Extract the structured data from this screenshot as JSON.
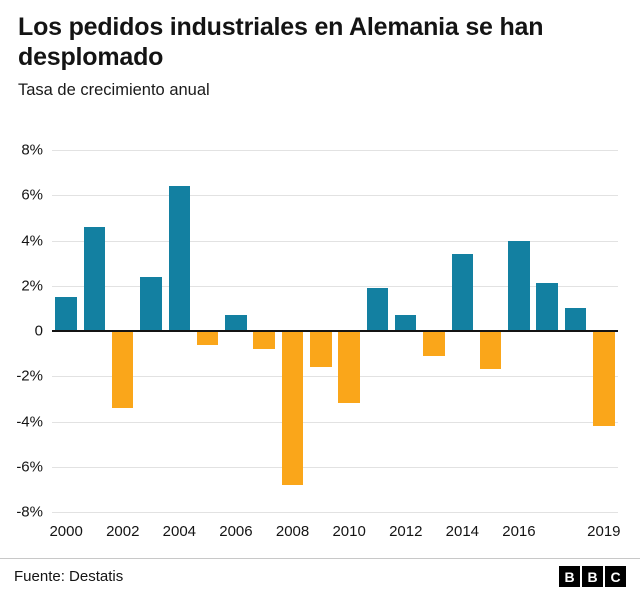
{
  "header": {
    "title": "Los pedidos industriales en Alemania se han desplomado",
    "subtitle": "Tasa de crecimiento anual"
  },
  "chart_data": {
    "type": "bar",
    "title": "Los pedidos industriales en Alemania se han desplomado",
    "subtitle": "Tasa de crecimiento anual",
    "categories": [
      "2000",
      "2001",
      "2002",
      "2003",
      "2004",
      "2005",
      "2006",
      "2007",
      "2008",
      "2009",
      "2010",
      "2011",
      "2012",
      "2013",
      "2014",
      "2015",
      "2016",
      "2017",
      "2018",
      "2019"
    ],
    "values": [
      1.5,
      4.6,
      -3.4,
      2.4,
      6.4,
      -0.6,
      0.7,
      -0.8,
      -6.8,
      -1.6,
      -3.2,
      1.9,
      0.7,
      -1.1,
      3.4,
      -1.7,
      4.0,
      2.1,
      1.0,
      -4.2
    ],
    "xlabel": "",
    "ylabel": "",
    "ylim": [
      -8,
      8
    ],
    "yticks": [
      {
        "value": 8,
        "label": "8%"
      },
      {
        "value": 6,
        "label": "6%"
      },
      {
        "value": 4,
        "label": "4%"
      },
      {
        "value": 2,
        "label": "2%"
      },
      {
        "value": 0,
        "label": "0"
      },
      {
        "value": -2,
        "label": "-2%"
      },
      {
        "value": -4,
        "label": "-4%"
      },
      {
        "value": -6,
        "label": "-6%"
      },
      {
        "value": -8,
        "label": "-8%"
      }
    ],
    "x_tick_labels": [
      "2000",
      "2002",
      "2004",
      "2006",
      "2008",
      "2010",
      "2012",
      "2014",
      "2016",
      "2019"
    ],
    "colors": {
      "positive": "#1380A1",
      "negative": "#FAA61A"
    },
    "grid": true,
    "legend": false
  },
  "footer": {
    "source": "Fuente: Destatis",
    "bbc_logo": [
      "B",
      "B",
      "C"
    ]
  }
}
